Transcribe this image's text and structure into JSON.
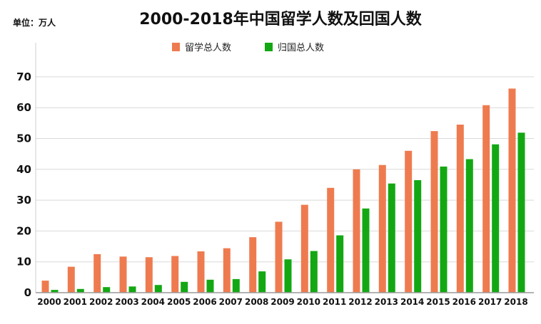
{
  "unit_label": "单位：万人",
  "chart_data": {
    "type": "bar",
    "title": "2000-2018年中国留学人数及回国人数",
    "categories": [
      "2000",
      "2001",
      "2002",
      "2003",
      "2004",
      "2005",
      "2006",
      "2007",
      "2008",
      "2009",
      "2010",
      "2011",
      "2012",
      "2013",
      "2014",
      "2015",
      "2016",
      "2017",
      "2018"
    ],
    "series": [
      {
        "name": "留学总人数",
        "color": "#ee7b4f",
        "values": [
          3.9,
          8.4,
          12.5,
          11.7,
          11.5,
          11.9,
          13.4,
          14.4,
          18.0,
          23.0,
          28.5,
          34.0,
          40.0,
          41.4,
          46.0,
          52.4,
          54.5,
          60.8,
          66.2
        ]
      },
      {
        "name": "归国总人数",
        "color": "#13a813",
        "values": [
          0.9,
          1.2,
          1.8,
          2.0,
          2.5,
          3.5,
          4.2,
          4.4,
          6.9,
          10.8,
          13.5,
          18.6,
          27.3,
          35.4,
          36.5,
          40.9,
          43.3,
          48.1,
          51.9
        ]
      }
    ],
    "yticks": [
      0,
      10,
      20,
      30,
      40,
      50,
      60,
      70
    ],
    "ylim": [
      0,
      75
    ],
    "grid": true,
    "legend": "top"
  }
}
